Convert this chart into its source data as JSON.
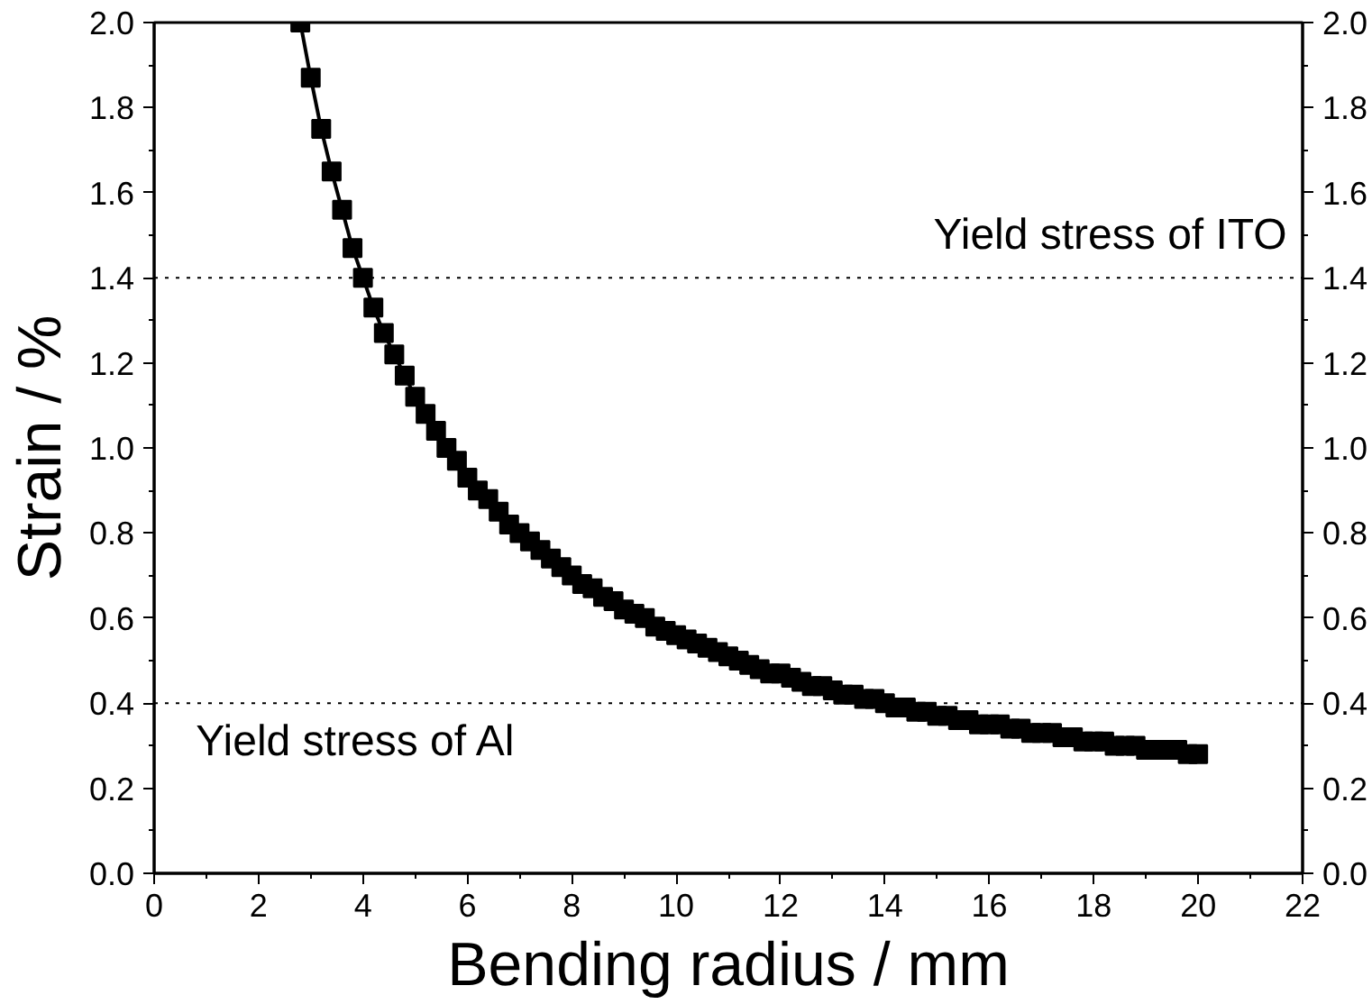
{
  "chart_data": {
    "type": "line",
    "xlabel": "Bending radius / mm",
    "ylabel": "Strain / %",
    "xlim": [
      0,
      22
    ],
    "xticks": [
      0,
      2,
      4,
      6,
      8,
      10,
      12,
      14,
      16,
      18,
      20,
      22
    ],
    "ylim": [
      0,
      2
    ],
    "yticks": [
      {
        "value": 0,
        "label": "0.0"
      },
      0.2,
      0.4,
      0.6,
      0.8,
      {
        "value": 1,
        "label": "1.0"
      },
      1.2,
      1.4,
      1.6,
      1.8,
      {
        "value": 2,
        "label": "2.0"
      }
    ],
    "y2lim": [
      0,
      2
    ],
    "y2ticks": [
      {
        "value": 0,
        "label": "0.0"
      },
      0.2,
      0.4,
      0.6,
      0.8,
      {
        "value": 1,
        "label": "1.0"
      },
      1.2,
      1.4,
      1.6,
      1.8,
      {
        "value": 2,
        "label": "2.0"
      }
    ],
    "x": [
      2.8,
      3.0,
      3.2,
      3.4,
      3.6,
      3.8,
      4.0,
      4.2,
      4.4,
      4.6,
      4.8,
      5.0,
      5.2,
      5.4,
      5.6,
      5.8,
      6.0,
      6.2,
      6.4,
      6.6,
      6.8,
      7.0,
      7.2,
      7.4,
      7.6,
      7.8,
      8.0,
      8.2,
      8.4,
      8.6,
      8.8,
      9.0,
      9.2,
      9.4,
      9.6,
      9.8,
      10.0,
      10.2,
      10.4,
      10.6,
      10.8,
      11.0,
      11.2,
      11.4,
      11.6,
      11.8,
      12.0,
      12.2,
      12.4,
      12.6,
      12.8,
      13.0,
      13.2,
      13.4,
      13.6,
      13.8,
      14.0,
      14.2,
      14.4,
      14.6,
      14.8,
      15.0,
      15.2,
      15.4,
      15.6,
      15.8,
      16.0,
      16.2,
      16.4,
      16.6,
      16.8,
      17.0,
      17.2,
      17.4,
      17.6,
      17.8,
      18.0,
      18.2,
      18.4,
      18.6,
      18.8,
      19.0,
      19.2,
      19.4,
      19.6,
      19.8,
      20.0
    ],
    "series": [
      {
        "color": "#000000",
        "values": [
          2.0,
          1.87,
          1.75,
          1.65,
          1.56,
          1.47,
          1.4,
          1.33,
          1.27,
          1.22,
          1.17,
          1.12,
          1.08,
          1.04,
          1.0,
          0.97,
          0.93,
          0.9,
          0.88,
          0.85,
          0.82,
          0.8,
          0.78,
          0.76,
          0.74,
          0.72,
          0.7,
          0.68,
          0.67,
          0.65,
          0.64,
          0.62,
          0.61,
          0.6,
          0.58,
          0.57,
          0.56,
          0.55,
          0.54,
          0.53,
          0.52,
          0.51,
          0.5,
          0.49,
          0.48,
          0.47,
          0.47,
          0.46,
          0.45,
          0.44,
          0.44,
          0.43,
          0.42,
          0.42,
          0.41,
          0.41,
          0.4,
          0.39,
          0.39,
          0.38,
          0.38,
          0.37,
          0.37,
          0.36,
          0.36,
          0.35,
          0.35,
          0.35,
          0.34,
          0.34,
          0.33,
          0.33,
          0.33,
          0.32,
          0.32,
          0.31,
          0.31,
          0.31,
          0.3,
          0.3,
          0.3,
          0.29,
          0.29,
          0.29,
          0.29,
          0.28,
          0.28
        ]
      }
    ],
    "ref_lines": [
      {
        "axis": "y",
        "value": 1.4,
        "label": "Yield stress of ITO",
        "color": "#000000",
        "line_style": "dotted"
      },
      {
        "axis": "y",
        "value": 0.4,
        "label": "Yield stress of Al",
        "color": "#000000",
        "line_style": "dotted"
      }
    ],
    "marker": "square",
    "line_style": "solid",
    "grid": false
  }
}
